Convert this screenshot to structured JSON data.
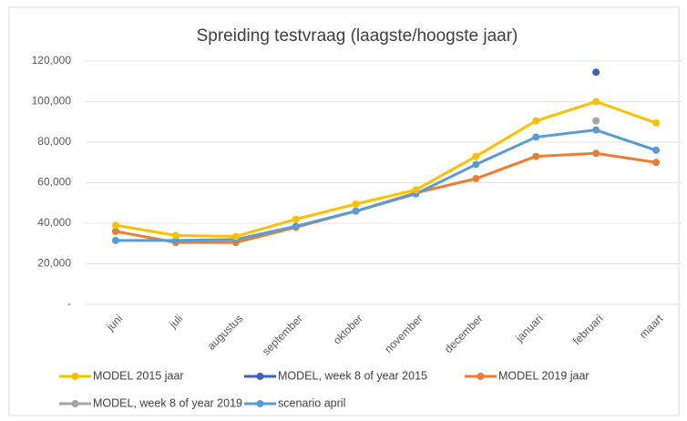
{
  "chart_data": {
    "type": "line",
    "title": "Spreiding testvraag (laagste/hoogste jaar)",
    "categories": [
      "juni",
      "juli",
      "augustus",
      "september",
      "oktober",
      "november",
      "december",
      "januari",
      "februari",
      "maart"
    ],
    "series": [
      {
        "name": "MODEL 2015 jaar",
        "color": "#ffc000",
        "values": [
          39000,
          34000,
          33500,
          42000,
          49500,
          56500,
          73000,
          90500,
          100000,
          89500
        ]
      },
      {
        "name": "MODEL, week 8 of year 2015",
        "color": "#3a64b4",
        "values": [
          null,
          null,
          null,
          null,
          null,
          null,
          null,
          null,
          114500,
          null
        ]
      },
      {
        "name": "MODEL 2019 jaar",
        "color": "#ed7d31",
        "values": [
          36000,
          30500,
          30500,
          38000,
          46000,
          55000,
          62000,
          73000,
          74500,
          70000
        ]
      },
      {
        "name": "MODEL, week 8 of year 2019",
        "color": "#a5a5a5",
        "values": [
          null,
          null,
          null,
          null,
          null,
          null,
          null,
          null,
          90500,
          null
        ]
      },
      {
        "name": "scenario april",
        "color": "#5b9bd5",
        "values": [
          31500,
          31500,
          32000,
          38500,
          46000,
          54500,
          69000,
          82500,
          86000,
          76000
        ]
      }
    ],
    "ylim": [
      0,
      120000
    ],
    "yticks": [
      {
        "value": 0,
        "label": "-"
      },
      {
        "value": 20000,
        "label": "20,000"
      },
      {
        "value": 40000,
        "label": "40,000"
      },
      {
        "value": 60000,
        "label": "60,000"
      },
      {
        "value": 80000,
        "label": "80,000"
      },
      {
        "value": 100000,
        "label": "100,000"
      },
      {
        "value": 120000,
        "label": "120,000"
      }
    ],
    "grid": true,
    "legend": "bottom"
  }
}
